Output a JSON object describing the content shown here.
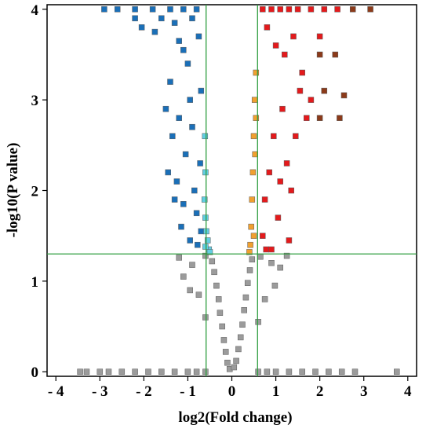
{
  "chart_data": {
    "type": "scatter",
    "title": "",
    "xlabel": "log2(Fold change)",
    "ylabel": "-log10(P value)",
    "xlim": [
      -4.2,
      4.2
    ],
    "ylim": [
      -0.05,
      4.05
    ],
    "x_ticks": [
      -4,
      -3,
      -2,
      -1,
      0,
      1,
      2,
      3,
      4
    ],
    "y_ticks": [
      0,
      1,
      2,
      3,
      4
    ],
    "x_tick_labels": [
      "- 4",
      "- 3",
      "- 2",
      "- 1",
      "0",
      "1",
      "2",
      "3",
      "4"
    ],
    "y_tick_labels": [
      "0",
      "1",
      "2",
      "3",
      "4"
    ],
    "thresholds": {
      "log2fc": [
        -0.585,
        0.585
      ],
      "neg_log10_p": 1.3
    },
    "grid": false,
    "legend": "none",
    "series": [
      {
        "color": "#9b9b9b",
        "points": [
          [
            -3.45,
            0
          ],
          [
            -3.3,
            0
          ],
          [
            -3.0,
            0
          ],
          [
            -2.8,
            0
          ],
          [
            -2.5,
            0
          ],
          [
            -2.2,
            0
          ],
          [
            -1.9,
            0
          ],
          [
            -1.6,
            0
          ],
          [
            -1.3,
            0
          ],
          [
            -1.0,
            0
          ],
          [
            -0.8,
            0
          ],
          [
            -0.6,
            0
          ],
          [
            0.6,
            0
          ],
          [
            0.8,
            0
          ],
          [
            1.0,
            0
          ],
          [
            1.3,
            0
          ],
          [
            1.6,
            0
          ],
          [
            1.9,
            0
          ],
          [
            2.2,
            0
          ],
          [
            2.5,
            0
          ],
          [
            2.8,
            0
          ],
          [
            3.75,
            0
          ],
          [
            -0.05,
            0.03
          ],
          [
            0.05,
            0.05
          ],
          [
            -0.1,
            0.1
          ],
          [
            0.1,
            0.12
          ],
          [
            -0.14,
            0.22
          ],
          [
            0.15,
            0.25
          ],
          [
            -0.18,
            0.35
          ],
          [
            0.2,
            0.38
          ],
          [
            -0.22,
            0.5
          ],
          [
            0.24,
            0.52
          ],
          [
            -0.27,
            0.65
          ],
          [
            0.28,
            0.68
          ],
          [
            -0.3,
            0.8
          ],
          [
            0.32,
            0.82
          ],
          [
            -0.35,
            0.95
          ],
          [
            0.36,
            0.98
          ],
          [
            -0.4,
            1.1
          ],
          [
            0.41,
            1.12
          ],
          [
            -0.45,
            1.22
          ],
          [
            0.46,
            1.24
          ],
          [
            -0.6,
            1.28
          ],
          [
            0.65,
            1.27
          ],
          [
            -0.9,
            1.18
          ],
          [
            0.9,
            1.2
          ],
          [
            1.1,
            1.15
          ],
          [
            -1.1,
            1.05
          ],
          [
            -0.75,
            0.85
          ],
          [
            0.75,
            0.8
          ],
          [
            -0.6,
            0.6
          ],
          [
            0.6,
            0.55
          ],
          [
            0.98,
            0.95
          ],
          [
            -0.95,
            0.9
          ],
          [
            1.25,
            1.28
          ],
          [
            -1.2,
            1.26
          ]
        ]
      },
      {
        "color": "#1a6fb8",
        "points": [
          [
            -2.9,
            4.0
          ],
          [
            -2.6,
            4.0
          ],
          [
            -2.2,
            4.0
          ],
          [
            -1.8,
            4.0
          ],
          [
            -1.4,
            4.0
          ],
          [
            -1.1,
            4.0
          ],
          [
            -0.8,
            4.0
          ],
          [
            -2.2,
            3.9
          ],
          [
            -2.05,
            3.8
          ],
          [
            -1.75,
            3.75
          ],
          [
            -1.6,
            3.9
          ],
          [
            -1.3,
            3.85
          ],
          [
            -1.2,
            3.65
          ],
          [
            -1.4,
            3.2
          ],
          [
            -1.5,
            2.9
          ],
          [
            -1.35,
            2.6
          ],
          [
            -1.45,
            2.2
          ],
          [
            -1.3,
            1.9
          ],
          [
            -1.15,
            1.6
          ],
          [
            -1.0,
            3.4
          ],
          [
            -0.95,
            3.0
          ],
          [
            -0.9,
            2.7
          ],
          [
            -1.05,
            2.4
          ],
          [
            -0.85,
            2.0
          ],
          [
            -0.8,
            1.75
          ],
          [
            -0.95,
            1.45
          ],
          [
            -0.75,
            3.7
          ],
          [
            -0.7,
            3.1
          ],
          [
            -0.72,
            2.3
          ],
          [
            -0.7,
            1.55
          ],
          [
            -1.1,
            3.55
          ],
          [
            -1.2,
            2.8
          ],
          [
            -0.9,
            3.9
          ],
          [
            -1.25,
            2.1
          ],
          [
            -1.1,
            1.85
          ],
          [
            -0.78,
            1.4
          ]
        ]
      },
      {
        "color": "#63cde2",
        "points": [
          [
            -0.62,
            1.9
          ],
          [
            -0.6,
            1.7
          ],
          [
            -0.58,
            1.55
          ],
          [
            -0.55,
            1.45
          ],
          [
            -0.52,
            1.35
          ],
          [
            -0.5,
            1.32
          ],
          [
            -0.6,
            2.2
          ],
          [
            -0.61,
            2.6
          ],
          [
            -0.6,
            1.38
          ]
        ]
      },
      {
        "color": "#f0a030",
        "points": [
          [
            0.55,
            3.3
          ],
          [
            0.52,
            3.0
          ],
          [
            0.5,
            2.6
          ],
          [
            0.48,
            2.2
          ],
          [
            0.46,
            1.9
          ],
          [
            0.44,
            1.6
          ],
          [
            0.42,
            1.4
          ],
          [
            0.4,
            1.32
          ],
          [
            0.5,
            1.5
          ],
          [
            0.55,
            2.8
          ],
          [
            0.53,
            2.4
          ]
        ]
      },
      {
        "color": "#e31a1c",
        "points": [
          [
            0.7,
            4.0
          ],
          [
            0.9,
            4.0
          ],
          [
            1.1,
            4.0
          ],
          [
            1.3,
            4.0
          ],
          [
            1.5,
            4.0
          ],
          [
            1.8,
            4.0
          ],
          [
            2.1,
            4.0
          ],
          [
            2.4,
            4.0
          ],
          [
            0.8,
            3.8
          ],
          [
            1.0,
            3.6
          ],
          [
            1.2,
            3.5
          ],
          [
            1.4,
            3.7
          ],
          [
            1.6,
            3.3
          ],
          [
            1.8,
            3.0
          ],
          [
            2.0,
            3.7
          ],
          [
            1.15,
            2.9
          ],
          [
            0.95,
            2.6
          ],
          [
            0.85,
            2.2
          ],
          [
            0.75,
            1.9
          ],
          [
            0.7,
            1.5
          ],
          [
            1.05,
            1.7
          ],
          [
            1.25,
            2.3
          ],
          [
            1.45,
            2.6
          ],
          [
            1.3,
            1.45
          ],
          [
            1.7,
            2.8
          ],
          [
            0.78,
            1.35
          ],
          [
            1.55,
            3.1
          ],
          [
            0.9,
            1.35
          ],
          [
            1.1,
            2.1
          ],
          [
            1.35,
            2.0
          ]
        ]
      },
      {
        "color": "#8b3a1a",
        "points": [
          [
            2.75,
            4.0
          ],
          [
            3.15,
            4.0
          ],
          [
            2.0,
            3.5
          ],
          [
            2.35,
            3.5
          ],
          [
            2.1,
            3.1
          ],
          [
            2.55,
            3.05
          ],
          [
            2.0,
            2.8
          ],
          [
            2.45,
            2.8
          ]
        ]
      }
    ]
  }
}
